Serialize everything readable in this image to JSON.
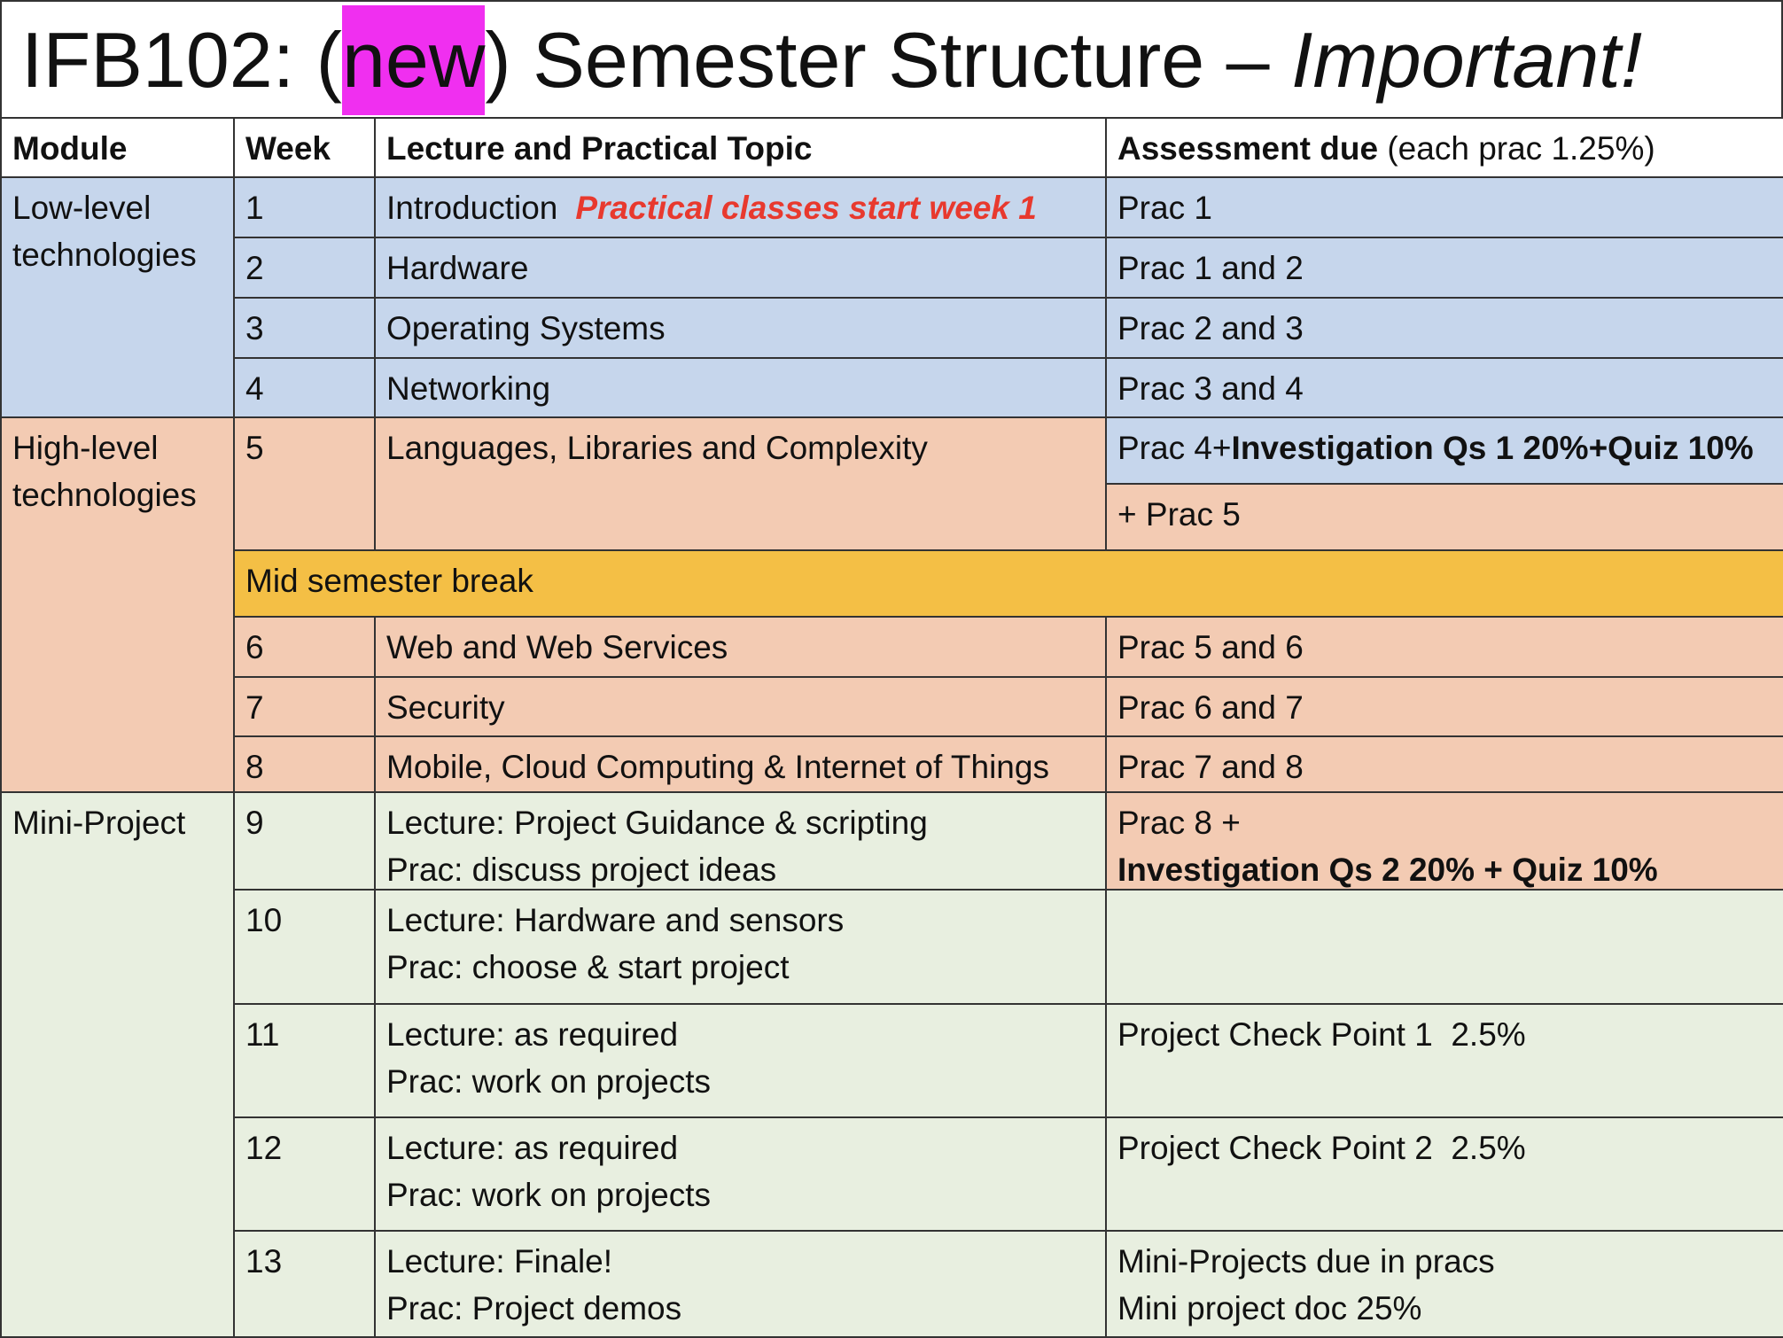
{
  "title": {
    "code": "IFB102: (",
    "highlight": "new",
    "rest": ") Semester Structure – ",
    "emphasis": "Important!"
  },
  "header": {
    "module": "Module",
    "week": "Week",
    "topic": "Lecture and Practical Topic",
    "assessment": "Assessment due",
    "assessment_note": "(each prac 1.25%)"
  },
  "modules": [
    "Low-level technologies",
    "High-level technologies",
    "Mini-Project"
  ],
  "break": "Mid semester break",
  "rows": [
    {
      "week": "1",
      "topic": "Introduction",
      "note": "Practical classes start week 1",
      "assessment": "Prac 1"
    },
    {
      "week": "2",
      "topic": "Hardware",
      "assessment": "Prac 1 and 2"
    },
    {
      "week": "3",
      "topic": "Operating Systems",
      "assessment": "Prac 2 and 3"
    },
    {
      "week": "4",
      "topic": "Networking",
      "assessment": "Prac 3 and 4"
    },
    {
      "week": "5",
      "topic": "Languages, Libraries and Complexity",
      "assessment": "Prac 4+",
      "assessment_bold": "Investigation Qs 1 20%+Quiz 10%",
      "assessment_2": "+ Prac 5"
    },
    {
      "week": "6",
      "topic": "Web and Web Services",
      "assessment": "Prac 5 and 6"
    },
    {
      "week": "7",
      "topic": "Security",
      "assessment": "Prac 6 and 7"
    },
    {
      "week": "8",
      "topic": "Mobile, Cloud Computing & Internet of Things",
      "assessment": "Prac 7 and 8"
    },
    {
      "week": "9",
      "topic": "Lecture: Project Guidance & scripting",
      "topic_2": "Prac: discuss project ideas",
      "assessment": "Prac 8 +",
      "assessment_bold": "Investigation Qs 2 20% + Quiz 10%"
    },
    {
      "week": "10",
      "topic": "Lecture: Hardware and sensors",
      "topic_2": "Prac: choose & start project"
    },
    {
      "week": "11",
      "topic": "Lecture: as required",
      "topic_2": "Prac: work on projects",
      "assessment": "Project Check Point 1  2.5%"
    },
    {
      "week": "12",
      "topic": "Lecture: as required",
      "topic_2": "Prac: work on projects",
      "assessment": "Project Check Point 2  2.5%"
    },
    {
      "week": "13",
      "topic": "Lecture: Finale!",
      "topic_2": "Prac: Project demos",
      "assessment": "Mini-Projects due in pracs",
      "assessment_2": "Mini project doc 25%"
    }
  ]
}
